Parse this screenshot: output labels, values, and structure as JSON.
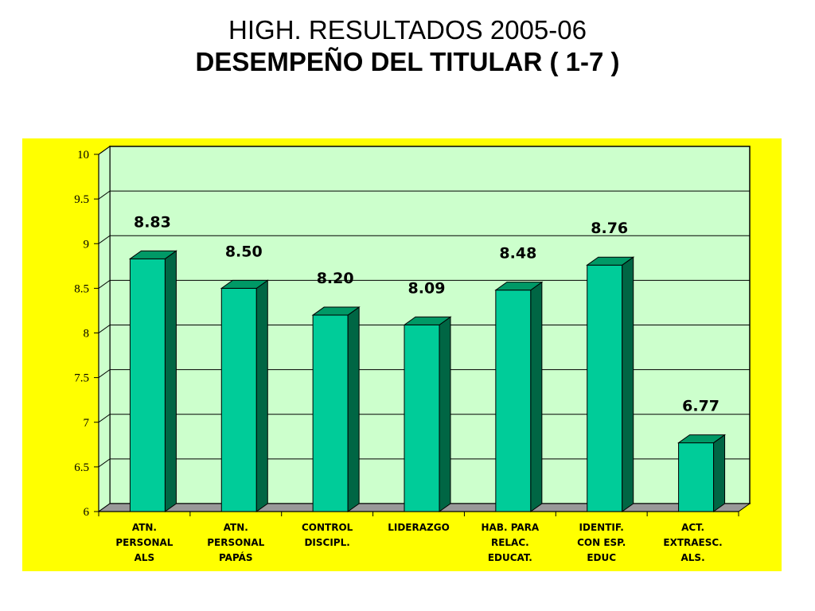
{
  "title": {
    "line1": "HIGH. RESULTADOS 2005-06",
    "line2": "DESEMPEÑO DEL TITULAR ( 1-7 )"
  },
  "colors": {
    "panel_bg": "#ffff00",
    "plot_bg": "#ccffcc",
    "bar_front": "#00cc99",
    "bar_side": "#006644",
    "bar_top": "#009966",
    "floor": "#999999"
  },
  "chart_data": {
    "type": "bar",
    "style": "3d",
    "categories": [
      [
        "ATN.",
        "PERSONAL",
        "ALS"
      ],
      [
        "ATN.",
        "PERSONAL",
        "PAPÁS"
      ],
      [
        "CONTROL",
        "DISCIPL."
      ],
      [
        "LIDERAZGO"
      ],
      [
        "HAB. PARA",
        "RELAC.",
        "EDUCAT."
      ],
      [
        "IDENTIF.",
        "CON ESP.",
        "EDUC"
      ],
      [
        "ACT.",
        "EXTRAESC.",
        "ALS."
      ]
    ],
    "values": [
      8.83,
      8.5,
      8.2,
      8.09,
      8.48,
      8.76,
      6.77
    ],
    "value_labels": [
      "8.83",
      "8.50",
      "8.20",
      "8.09",
      "8.48",
      "8.76",
      "6.77"
    ],
    "ylim": [
      6,
      10
    ],
    "yticks": [
      "6",
      "6.5",
      "7",
      "7.5",
      "8",
      "8.5",
      "9",
      "9.5",
      "10"
    ],
    "grid": true,
    "legend": "none"
  }
}
